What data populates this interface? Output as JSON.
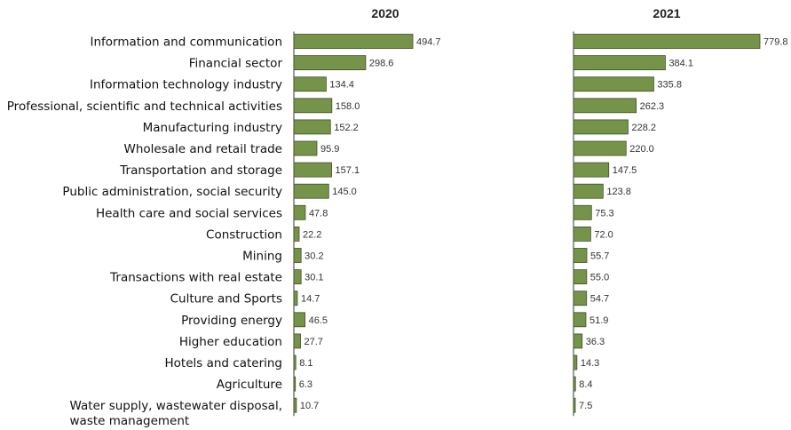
{
  "chart_data": {
    "type": "bar",
    "orientation": "horizontal",
    "categories": [
      "Information and communication",
      "Financial sector",
      "Information technology industry",
      "Professional, scientific and technical activities",
      "Manufacturing industry",
      "Wholesale and retail trade",
      "Transportation and storage",
      "Public administration, social security",
      "Health care and social services",
      "Construction",
      "Mining",
      "Transactions with real estate",
      "Culture and Sports",
      "Providing energy",
      "Higher education",
      "Hotels and catering",
      "Agriculture",
      "Water supply, wastewater disposal, waste management"
    ],
    "category_lines": [
      [
        "Information and communication"
      ],
      [
        "Financial sector"
      ],
      [
        "Information technology industry"
      ],
      [
        "Professional, scientific and technical activities"
      ],
      [
        "Manufacturing industry"
      ],
      [
        "Wholesale and retail trade"
      ],
      [
        "Transportation and storage"
      ],
      [
        "Public administration, social security"
      ],
      [
        "Health care and social services"
      ],
      [
        "Construction"
      ],
      [
        "Mining"
      ],
      [
        "Transactions with real estate"
      ],
      [
        "Culture and Sports"
      ],
      [
        "Providing energy"
      ],
      [
        "Higher education"
      ],
      [
        "Hotels and catering"
      ],
      [
        "Agriculture"
      ],
      [
        "Water supply, wastewater disposal,",
        "waste management"
      ]
    ],
    "series": [
      {
        "name": "2020",
        "values": [
          494.7,
          298.6,
          134.4,
          158.0,
          152.2,
          95.9,
          157.1,
          145.0,
          47.8,
          22.2,
          30.2,
          30.1,
          14.7,
          46.5,
          27.7,
          8.1,
          6.3,
          10.7
        ],
        "labels": [
          "494.7",
          "298.6",
          "134.4",
          "158.0",
          "152.2",
          "95.9",
          "157.1",
          "145.0",
          "47.8",
          "22.2",
          "30.2",
          "30.1",
          "14.7",
          "46.5",
          "27.7",
          "8.1",
          "6.3",
          "10.7"
        ]
      },
      {
        "name": "2021",
        "values": [
          779.8,
          384.1,
          335.8,
          262.3,
          228.2,
          220.0,
          147.5,
          123.8,
          75.3,
          72.0,
          55.7,
          55.0,
          54.7,
          51.9,
          36.3,
          14.3,
          8.4,
          7.5
        ],
        "labels": [
          "779.8",
          "384.1",
          "335.8",
          "262.3",
          "228.2",
          "220.0",
          "147.5",
          "123.8",
          "75.3",
          "72.0",
          "55.7",
          "55.0",
          "54.7",
          "51.9",
          "36.3",
          "14.3",
          "8.4",
          "7.5"
        ]
      }
    ],
    "colors": {
      "bar_fill": "#76934a",
      "bar_stroke": "#3f5127"
    },
    "grid": false,
    "legend": "none"
  }
}
